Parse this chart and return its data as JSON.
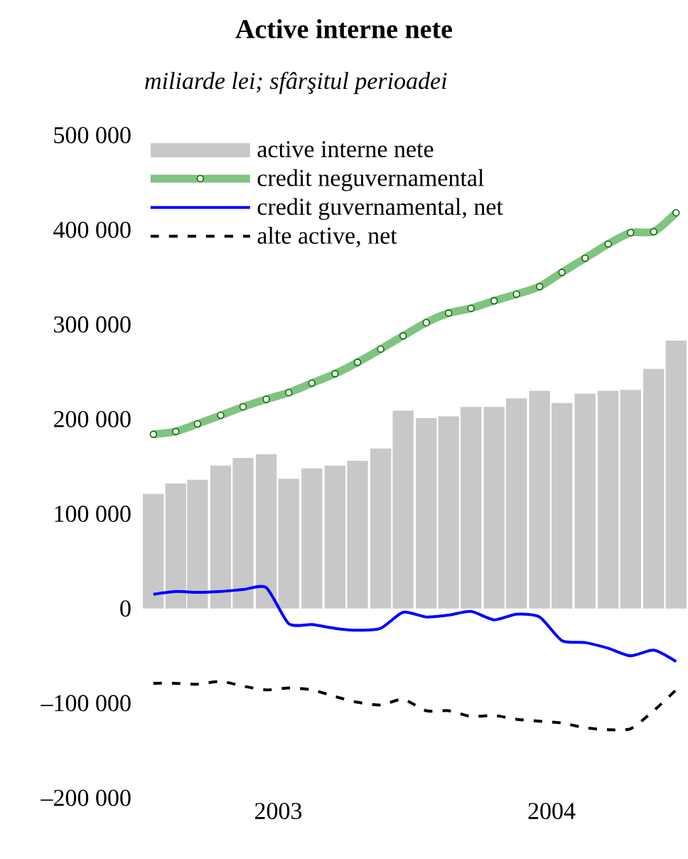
{
  "chart_data": {
    "type": "bar",
    "title": "Active interne nete",
    "subtitle": "miliarde lei; sfârşitul perioadei",
    "x": [
      "2003-01-16",
      "2003-02-15",
      "2003-03-16",
      "2003-04-16",
      "2003-05-16",
      "2003-06-16",
      "2003-07-16",
      "2003-08-16",
      "2003-09-16",
      "2003-10-16",
      "2003-11-16",
      "2003-12-16",
      "2004-01-16",
      "2004-02-15",
      "2004-03-16",
      "2004-04-16",
      "2004-05-16",
      "2004-06-16",
      "2004-07-16",
      "2004-08-16",
      "2004-09-16",
      "2004-10-16",
      "2004-11-16",
      "2004-12-16"
    ],
    "xlim": [
      "2003-01-01",
      "2005-01-01"
    ],
    "xticks": [
      {
        "value": "2003-07-02",
        "label": "2003"
      },
      {
        "value": "2004-07-02",
        "label": "2004"
      }
    ],
    "ylim": [
      -200000,
      500000
    ],
    "yticks": [
      {
        "value": -200000,
        "label": "–200 000"
      },
      {
        "value": -100000,
        "label": "–100 000"
      },
      0,
      {
        "value": 100000,
        "label": "100 000"
      },
      {
        "value": 200000,
        "label": "200 000"
      },
      {
        "value": 300000,
        "label": "300 000"
      },
      {
        "value": 400000,
        "label": "400 000"
      },
      {
        "value": 500000,
        "label": "500 000"
      }
    ],
    "legend": "top left",
    "series": [
      {
        "name": "active interne nete",
        "color": "#c8c8c8",
        "values": [
          121000,
          132000,
          136000,
          151000,
          159000,
          163000,
          137000,
          148000,
          151000,
          156000,
          169000,
          209000,
          201000,
          203000,
          213000,
          213000,
          222000,
          230000,
          217000,
          227000,
          230000,
          231000,
          253000,
          283000
        ]
      },
      {
        "name": "credit neguvernamental",
        "type": "line",
        "color": "#7fc47f",
        "marker": "circle",
        "values": [
          184000,
          187000,
          195000,
          204000,
          213000,
          221000,
          228000,
          238000,
          248000,
          260000,
          274000,
          288000,
          302000,
          312000,
          317000,
          325000,
          332000,
          340000,
          355000,
          370000,
          385000,
          397000,
          398000,
          418000
        ]
      },
      {
        "name": "credit guvernamental, net",
        "type": "line",
        "color": "#0000ff",
        "values": [
          15000,
          18000,
          17000,
          18000,
          20000,
          22000,
          -16000,
          -17000,
          -21000,
          -23000,
          -21000,
          -4000,
          -9000,
          -7000,
          -3000,
          -12000,
          -6000,
          -9000,
          -34000,
          -36000,
          -42000,
          -50000,
          -44000,
          -56000
        ]
      },
      {
        "name": "alte active, net",
        "type": "line",
        "color": "#000000",
        "line_style": "dashed",
        "values": [
          -79000,
          -79000,
          -80000,
          -77000,
          -82000,
          -86000,
          -84000,
          -86000,
          -93000,
          -99000,
          -102000,
          -96000,
          -108000,
          -108000,
          -114000,
          -113000,
          -117000,
          -119000,
          -121000,
          -126000,
          -128000,
          -127000,
          -108000,
          -86000
        ]
      }
    ]
  }
}
